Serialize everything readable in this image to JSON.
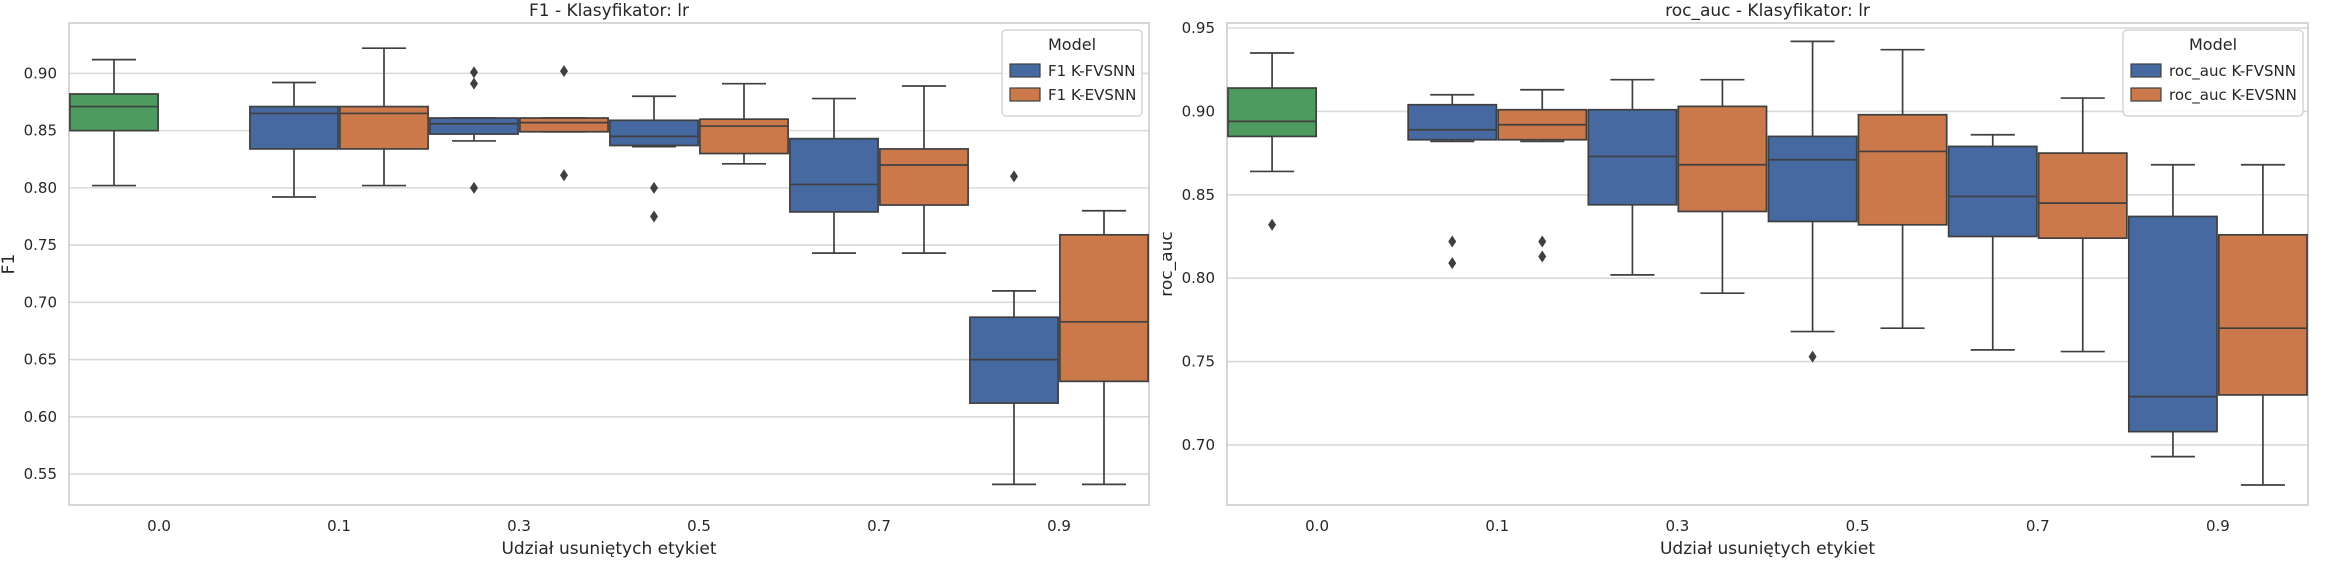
{
  "chart_data": [
    {
      "type": "box",
      "title": "F1 - Klasyfikator: lr",
      "xlabel": "Udział usuniętych etykiet",
      "ylabel": "F1",
      "categories": [
        "0.0",
        "0.1",
        "0.3",
        "0.5",
        "0.7",
        "0.9"
      ],
      "ylim": [
        0.523,
        0.944
      ],
      "yticks": [
        0.55,
        0.6,
        0.65,
        0.7,
        0.75,
        0.8,
        0.85,
        0.9
      ],
      "ytick_labels": [
        "0.55",
        "0.60",
        "0.65",
        "0.70",
        "0.75",
        "0.80",
        "0.85",
        "0.90"
      ],
      "grid": true,
      "legend": {
        "title": "Model",
        "position": "top-right"
      },
      "series": [
        {
          "name": "",
          "color": "#55a868",
          "boxes": [
            {
              "category": "0.0",
              "min": 0.802,
              "q1": 0.85,
              "median": 0.871,
              "q3": 0.882,
              "max": 0.912,
              "outliers": []
            }
          ]
        },
        {
          "name": "F1 K-FVSNN",
          "color": "#4c72b0",
          "boxes": [
            {
              "category": "0.1",
              "min": 0.792,
              "q1": 0.834,
              "median": 0.865,
              "q3": 0.871,
              "max": 0.892,
              "outliers": []
            },
            {
              "category": "0.3",
              "min": 0.841,
              "q1": 0.847,
              "median": 0.856,
              "q3": 0.861,
              "max": 0.861,
              "outliers": [
                0.901,
                0.891,
                0.8
              ]
            },
            {
              "category": "0.5",
              "min": 0.836,
              "q1": 0.837,
              "median": 0.845,
              "q3": 0.859,
              "max": 0.88,
              "outliers": [
                0.8,
                0.775
              ]
            },
            {
              "category": "0.7",
              "min": 0.743,
              "q1": 0.779,
              "median": 0.803,
              "q3": 0.843,
              "max": 0.878,
              "outliers": []
            },
            {
              "category": "0.9",
              "min": 0.541,
              "q1": 0.612,
              "median": 0.65,
              "q3": 0.687,
              "max": 0.71,
              "outliers": [
                0.81
              ]
            }
          ]
        },
        {
          "name": "F1 K-EVSNN",
          "color": "#dd8452",
          "boxes": [
            {
              "category": "0.1",
              "min": 0.802,
              "q1": 0.834,
              "median": 0.865,
              "q3": 0.871,
              "max": 0.922,
              "outliers": []
            },
            {
              "category": "0.3",
              "min": 0.849,
              "q1": 0.849,
              "median": 0.857,
              "q3": 0.861,
              "max": 0.861,
              "outliers": [
                0.902,
                0.811
              ]
            },
            {
              "category": "0.5",
              "min": 0.821,
              "q1": 0.83,
              "median": 0.854,
              "q3": 0.86,
              "max": 0.891,
              "outliers": []
            },
            {
              "category": "0.7",
              "min": 0.743,
              "q1": 0.785,
              "median": 0.82,
              "q3": 0.834,
              "max": 0.889,
              "outliers": []
            },
            {
              "category": "0.9",
              "min": 0.541,
              "q1": 0.631,
              "median": 0.683,
              "q3": 0.759,
              "max": 0.78,
              "outliers": []
            }
          ]
        }
      ]
    },
    {
      "type": "box",
      "title": "roc_auc - Klasyfikator: lr",
      "xlabel": "Udział usuniętych etykiet",
      "ylabel": "roc_auc",
      "categories": [
        "0.0",
        "0.1",
        "0.3",
        "0.5",
        "0.7",
        "0.9"
      ],
      "ylim": [
        0.664,
        0.953
      ],
      "yticks": [
        0.7,
        0.75,
        0.8,
        0.85,
        0.9,
        0.95
      ],
      "ytick_labels": [
        "0.70",
        "0.75",
        "0.80",
        "0.85",
        "0.90",
        "0.95"
      ],
      "grid": true,
      "legend": {
        "title": "Model",
        "position": "top-right"
      },
      "series": [
        {
          "name": "",
          "color": "#55a868",
          "boxes": [
            {
              "category": "0.0",
              "min": 0.864,
              "q1": 0.885,
              "median": 0.894,
              "q3": 0.914,
              "max": 0.935,
              "outliers": [
                0.832
              ]
            }
          ]
        },
        {
          "name": "roc_auc K-FVSNN",
          "color": "#4c72b0",
          "boxes": [
            {
              "category": "0.1",
              "min": 0.882,
              "q1": 0.883,
              "median": 0.889,
              "q3": 0.904,
              "max": 0.91,
              "outliers": [
                0.822,
                0.809
              ]
            },
            {
              "category": "0.3",
              "min": 0.802,
              "q1": 0.844,
              "median": 0.873,
              "q3": 0.901,
              "max": 0.919,
              "outliers": []
            },
            {
              "category": "0.5",
              "min": 0.768,
              "q1": 0.834,
              "median": 0.871,
              "q3": 0.885,
              "max": 0.942,
              "outliers": [
                0.753
              ]
            },
            {
              "category": "0.7",
              "min": 0.757,
              "q1": 0.825,
              "median": 0.849,
              "q3": 0.879,
              "max": 0.886,
              "outliers": []
            },
            {
              "category": "0.9",
              "min": 0.693,
              "q1": 0.708,
              "median": 0.729,
              "q3": 0.837,
              "max": 0.868,
              "outliers": []
            }
          ]
        },
        {
          "name": "roc_auc K-EVSNN",
          "color": "#dd8452",
          "boxes": [
            {
              "category": "0.1",
              "min": 0.882,
              "q1": 0.883,
              "median": 0.892,
              "q3": 0.901,
              "max": 0.913,
              "outliers": [
                0.822,
                0.813
              ]
            },
            {
              "category": "0.3",
              "min": 0.791,
              "q1": 0.84,
              "median": 0.868,
              "q3": 0.903,
              "max": 0.919,
              "outliers": []
            },
            {
              "category": "0.5",
              "min": 0.77,
              "q1": 0.832,
              "median": 0.876,
              "q3": 0.898,
              "max": 0.937,
              "outliers": []
            },
            {
              "category": "0.7",
              "min": 0.756,
              "q1": 0.824,
              "median": 0.845,
              "q3": 0.875,
              "max": 0.908,
              "outliers": []
            },
            {
              "category": "0.9",
              "min": 0.676,
              "q1": 0.73,
              "median": 0.77,
              "q3": 0.826,
              "max": 0.868,
              "outliers": []
            }
          ]
        }
      ]
    }
  ]
}
